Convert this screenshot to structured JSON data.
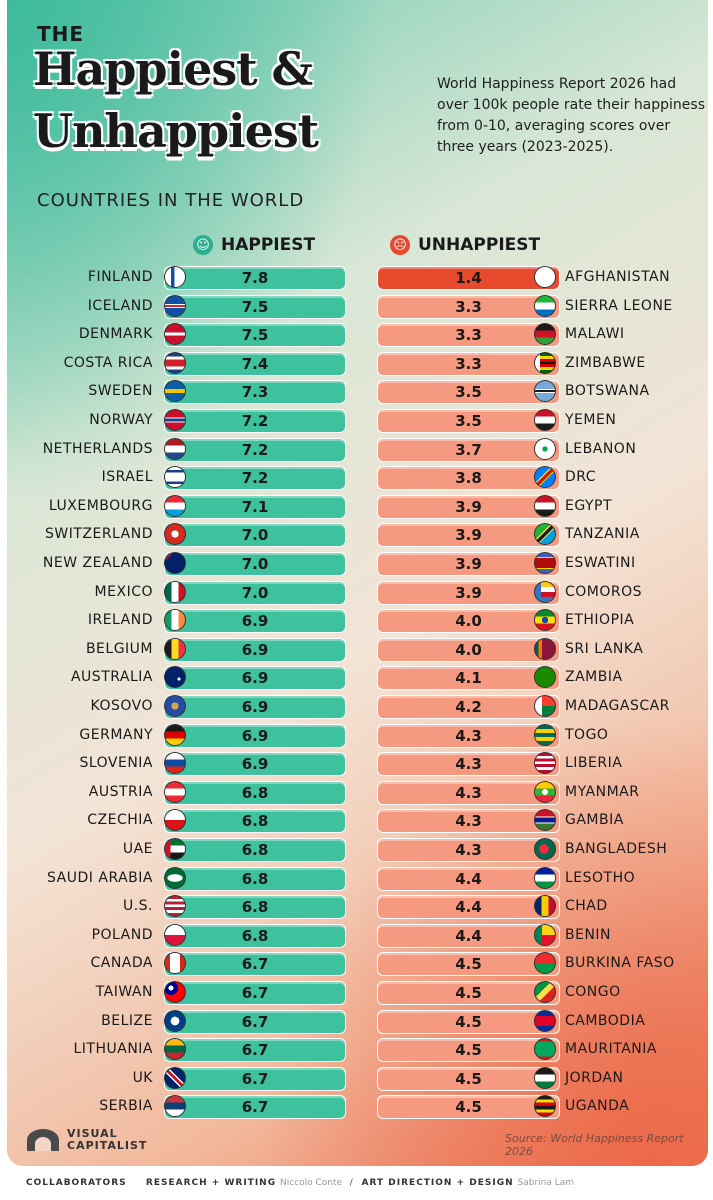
{
  "header": {
    "the": "THE",
    "title_line1": "Happiest &",
    "title_line2": "Unhappiest",
    "subtitle": "COUNTRIES IN THE WORLD",
    "description": "World Happiness Report 2026 had over 100k people rate their happiness from 0-10, averaging scores over three years (2023-2025)."
  },
  "legend": {
    "happy_label": "HAPPIEST",
    "unhappy_label": "UNHAPPIEST"
  },
  "chart_data": {
    "type": "table",
    "columns": [
      "HAPPIEST",
      "UNHAPPIEST"
    ],
    "happiest": [
      {
        "country": "FINLAND",
        "score": "7.8"
      },
      {
        "country": "ICELAND",
        "score": "7.5"
      },
      {
        "country": "DENMARK",
        "score": "7.5"
      },
      {
        "country": "COSTA RICA",
        "score": "7.4"
      },
      {
        "country": "SWEDEN",
        "score": "7.3"
      },
      {
        "country": "NORWAY",
        "score": "7.2"
      },
      {
        "country": "NETHERLANDS",
        "score": "7.2"
      },
      {
        "country": "ISRAEL",
        "score": "7.2"
      },
      {
        "country": "LUXEMBOURG",
        "score": "7.1"
      },
      {
        "country": "SWITZERLAND",
        "score": "7.0"
      },
      {
        "country": "NEW ZEALAND",
        "score": "7.0"
      },
      {
        "country": "MEXICO",
        "score": "7.0"
      },
      {
        "country": "IRELAND",
        "score": "6.9"
      },
      {
        "country": "BELGIUM",
        "score": "6.9"
      },
      {
        "country": "AUSTRALIA",
        "score": "6.9"
      },
      {
        "country": "KOSOVO",
        "score": "6.9"
      },
      {
        "country": "GERMANY",
        "score": "6.9"
      },
      {
        "country": "SLOVENIA",
        "score": "6.9"
      },
      {
        "country": "AUSTRIA",
        "score": "6.8"
      },
      {
        "country": "CZECHIA",
        "score": "6.8"
      },
      {
        "country": "UAE",
        "score": "6.8"
      },
      {
        "country": "SAUDI ARABIA",
        "score": "6.8"
      },
      {
        "country": "U.S.",
        "score": "6.8"
      },
      {
        "country": "POLAND",
        "score": "6.8"
      },
      {
        "country": "CANADA",
        "score": "6.7"
      },
      {
        "country": "TAIWAN",
        "score": "6.7"
      },
      {
        "country": "BELIZE",
        "score": "6.7"
      },
      {
        "country": "LITHUANIA",
        "score": "6.7"
      },
      {
        "country": "UK",
        "score": "6.7"
      },
      {
        "country": "SERBIA",
        "score": "6.7"
      }
    ],
    "unhappiest": [
      {
        "country": "AFGHANISTAN",
        "score": "1.4"
      },
      {
        "country": "SIERRA LEONE",
        "score": "3.3"
      },
      {
        "country": "MALAWI",
        "score": "3.3"
      },
      {
        "country": "ZIMBABWE",
        "score": "3.3"
      },
      {
        "country": "BOTSWANA",
        "score": "3.5"
      },
      {
        "country": "YEMEN",
        "score": "3.5"
      },
      {
        "country": "LEBANON",
        "score": "3.7"
      },
      {
        "country": "DRC",
        "score": "3.8"
      },
      {
        "country": "EGYPT",
        "score": "3.9"
      },
      {
        "country": "TANZANIA",
        "score": "3.9"
      },
      {
        "country": "ESWATINI",
        "score": "3.9"
      },
      {
        "country": "COMOROS",
        "score": "3.9"
      },
      {
        "country": "ETHIOPIA",
        "score": "4.0"
      },
      {
        "country": "SRI LANKA",
        "score": "4.0"
      },
      {
        "country": "ZAMBIA",
        "score": "4.1"
      },
      {
        "country": "MADAGASCAR",
        "score": "4.2"
      },
      {
        "country": "TOGO",
        "score": "4.3"
      },
      {
        "country": "LIBERIA",
        "score": "4.3"
      },
      {
        "country": "MYANMAR",
        "score": "4.3"
      },
      {
        "country": "GAMBIA",
        "score": "4.3"
      },
      {
        "country": "BANGLADESH",
        "score": "4.3"
      },
      {
        "country": "LESOTHO",
        "score": "4.4"
      },
      {
        "country": "CHAD",
        "score": "4.4"
      },
      {
        "country": "BENIN",
        "score": "4.4"
      },
      {
        "country": "BURKINA FASO",
        "score": "4.5"
      },
      {
        "country": "CONGO",
        "score": "4.5"
      },
      {
        "country": "CAMBODIA",
        "score": "4.5"
      },
      {
        "country": "MAURITANIA",
        "score": "4.5"
      },
      {
        "country": "JORDAN",
        "score": "4.5"
      },
      {
        "country": "UGANDA",
        "score": "4.5"
      }
    ]
  },
  "flags": {
    "happiest": [
      "linear-gradient(90deg,#fff 0 30%,#1b4fa0 30% 48%,#fff 48%), linear-gradient(#fff 0 40%,#1b4fa0 40% 60%,#fff 60%)",
      "linear-gradient(#0f4fa8 0 40%,#fff 40% 44%,#d72828 44% 56%,#fff 56% 60%,#0f4fa8 60%)",
      "linear-gradient(#c8102e 0 42%,#fff 42% 58%,#c8102e 58%)",
      "linear-gradient(#1b3e8c 0 17%,#fff 17% 33%,#d21f2a 33% 67%,#fff 67% 83%,#1b3e8c 83%)",
      "linear-gradient(#0a5fa8 0 40%,#f5c400 40% 60%,#0a5fa8 60%)",
      "linear-gradient(#c8102e 0 38%,#fff 38% 42%,#1b3e8c 42% 58%,#fff 58% 62%,#c8102e 62%)",
      "linear-gradient(#ae1c28 0 33%,#fff 33% 67%,#21468b 67%)",
      "linear-gradient(#fff 0 15%,#1b3e8c 15% 28%,#fff 28% 72%,#1b3e8c 72% 85%,#fff 85%)",
      "linear-gradient(#ed2939 0 33%,#fff 33% 67%,#00a1de 67%)",
      "radial-gradient(circle,#fff 0 25%,#d52b1e 26%)",
      "linear-gradient(135deg,#c8102e 0 20%,#012169 20%)",
      "linear-gradient(90deg,#006847 0 33%,#fff 33% 67%,#ce1126 67%)",
      "linear-gradient(90deg,#169b62 0 33%,#fff 33% 67%,#ff883e 67%)",
      "linear-gradient(90deg,#1a1a1a 0 33%,#fdda24 33% 67%,#ef3340 67%)",
      "radial-gradient(circle at 70% 60%,#fff 0 8%,#012169 9%)",
      "radial-gradient(circle,#d0a650 0 25%,#244aa5 26%)",
      "linear-gradient(#1a1a1a 0 33%,#dd0000 33% 67%,#ffce00 67%)",
      "linear-gradient(#fff 0 33%,#0c4da2 33% 67%,#e2231a 67%)",
      "linear-gradient(#ed2939 0 33%,#fff 33% 67%,#ed2939 67%)",
      "linear-gradient(#fff 0 50%,#d7141a 50%)",
      "linear-gradient(90deg,#ce1126 0 28%,transparent 28%), linear-gradient(#00732f 0 33%,#fff 33% 67%,#1a1a1a 67%)",
      "radial-gradient(ellipse 40% 20% at 50% 50%,#fff 0 90%,#006c35 100%)",
      "linear-gradient(#b22234 0 14%,#fff 14% 28%,#b22234 28% 42%,#fff 42% 56%,#b22234 56% 70%,#fff 70% 84%,#b22234 84%)",
      "linear-gradient(#fff 0 50%,#dc143c 50%)",
      "linear-gradient(90deg,#d52b1e 0 25%,#fff 25% 75%,#d52b1e 75%)",
      "radial-gradient(circle at 30% 30%,#fff 0 12%,#000095 13% 35%,#fe0000 36%)",
      "radial-gradient(circle,#fff 0 30%,#003f87 31% 80%,#ce1126 81%)",
      "linear-gradient(#fdb913 0 33%,#006a44 33% 67%,#c1272d 67%)",
      "linear-gradient(45deg,#012169 0 40%,#fff 40% 45%,#c8102e 45% 55%,#fff 55% 60%,#012169 60%)",
      "linear-gradient(#c6363c 0 33%,#0c4076 33% 67%,#fff 67%)"
    ],
    "unhappiest": [
      "linear-gradient(#fff 0 100%)",
      "linear-gradient(#1eb53a 0 33%,#fff 33% 67%,#0072c6 67%)",
      "linear-gradient(#1a1a1a 0 33%,#ce1126 33% 67%,#339e35 67%)",
      "linear-gradient(90deg,#fff 0 25%,transparent 25%), linear-gradient(#006400 0 15%,#ffd200 15% 30%,#d40000 30% 45%,#1a1a1a 45% 55%,#d40000 55% 70%,#ffd200 70% 85%,#006400 85%)",
      "linear-gradient(#75aadb 0 40%,#fff 40% 44%,#1a1a1a 44% 56%,#fff 56% 60%,#75aadb 60%)",
      "linear-gradient(#ce1126 0 33%,#fff 33% 67%,#1a1a1a 67%)",
      "radial-gradient(circle,#00a651 0 18%,#fff 19%), linear-gradient(#ed1c24 0 25%,#fff 25% 75%,#ed1c24 75%)",
      "linear-gradient(135deg,#007fff 0 40%,#f7d618 40% 44%,#ce1021 44% 56%,#f7d618 56% 60%,#007fff 60%)",
      "linear-gradient(#ce1126 0 33%,#fff 33% 67%,#1a1a1a 67%)",
      "linear-gradient(135deg,#1eb53a 0 40%,#fcd116 40% 44%,#1a1a1a 44% 56%,#fcd116 56% 60%,#00a3dd 60%)",
      "linear-gradient(#3e5eb9 0 20%,#ffd900 20% 25%,#b10c0c 25% 75%,#ffd900 75% 80%,#3e5eb9 80%)",
      "linear-gradient(90deg,#3a75c4 0 30%,transparent 30%), linear-gradient(#ffc61e 0 25%,#fff 25% 50%,#ce1126 50% 75%,#3a75c4 75%)",
      "radial-gradient(circle,#0f47af 0 22%,transparent 23%), linear-gradient(#078930 0 33%,#fcdd09 33% 67%,#da121a 67%)",
      "linear-gradient(90deg,#005f56 0 18%,#ff7300 18% 35%,#8d153a 35%)",
      "linear-gradient(#198a00 0 100%)",
      "linear-gradient(90deg,#fff 0 35%,transparent 35%), linear-gradient(#fc3d32 0 50%,#007e3a 50%)",
      "linear-gradient(#006a4e 0 20%,#ffce00 20% 40%,#006a4e 40% 60%,#ffce00 60% 80%,#006a4e 80%)",
      "linear-gradient(#bf0a30 0 14%,#fff 14% 28%,#bf0a30 28% 42%,#fff 42% 56%,#bf0a30 56% 70%,#fff 70% 84%,#bf0a30 84%)",
      "radial-gradient(circle,#fff 0 20%,transparent 21%), linear-gradient(#fecb00 0 33%,#34b233 33% 67%,#ea2839 67%)",
      "linear-gradient(#ce1126 0 33%,#fff 33% 37%,#0c1c8c 37% 63%,#fff 63% 67%,#3a7728 67%)",
      "radial-gradient(circle at 45% 50%,#f42a41 0 32%,#006a4e 33%)",
      "linear-gradient(#00209f 0 33%,#fff 33% 67%,#009543 67%)",
      "linear-gradient(90deg,#002664 0 33%,#fecb00 33% 67%,#c60c30 67%)",
      "linear-gradient(90deg,#008751 0 35%,transparent 35%), linear-gradient(#fcd116 0 50%,#e8112d 50%)",
      "linear-gradient(#ef2b2d 0 50%,#009e49 50%)",
      "linear-gradient(135deg,#009543 0 40%,#fbde4a 40% 60%,#dc241f 60%)",
      "linear-gradient(#032ea1 0 25%,#e00025 25% 75%,#032ea1 75%)",
      "linear-gradient(#d01c1f 0 12%,#00a95c 12% 88%,#d01c1f 88%)",
      "linear-gradient(#1a1a1a 0 33%,#fff 33% 67%,#007a3d 67%)",
      "linear-gradient(#1a1a1a 0 17%,#fcdc04 17% 33%,#d90000 33% 50%,#1a1a1a 50% 67%,#fcdc04 67% 83%,#d90000 83%)"
    ]
  },
  "footer": {
    "logo_line1": "VISUAL",
    "logo_line2": "CAPITALIST",
    "source": "Source: World Happiness Report 2026",
    "collaborators": "COLLABORATORS",
    "research_label": "RESEARCH + WRITING",
    "research_name": "Niccolo Conte",
    "art_label": "ART DIRECTION + DESIGN",
    "art_name": "Sabrina Lam"
  }
}
